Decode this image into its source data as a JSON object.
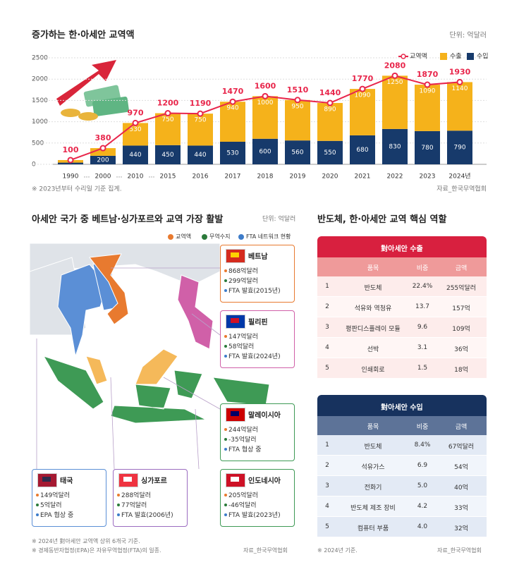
{
  "chart_data": {
    "type": "bar-line",
    "title": "증가하는 한·아세안 교역액",
    "unit": "단위: 억달러",
    "categories": [
      "1990",
      "2000",
      "2010",
      "2015",
      "2016",
      "2017",
      "2018",
      "2019",
      "2020",
      "2021",
      "2022",
      "2023",
      "2024년"
    ],
    "break_label": "…",
    "breaks_after": [
      0,
      1,
      2
    ],
    "series": [
      {
        "name": "교역액",
        "kind": "line",
        "color": "#e8264b",
        "values": [
          100,
          380,
          970,
          1200,
          1190,
          1470,
          1600,
          1510,
          1440,
          1770,
          2080,
          1870,
          1930
        ]
      },
      {
        "name": "수출",
        "kind": "stack",
        "color": "#f5b21b",
        "values": [
          60,
          180,
          530,
          750,
          750,
          940,
          1000,
          950,
          890,
          1090,
          1250,
          1090,
          1140
        ],
        "value_labels": [
          null,
          null,
          "530",
          "750",
          "750",
          "940",
          "1000",
          "950",
          "890",
          "1090",
          "1250",
          "1090",
          "1140"
        ]
      },
      {
        "name": "수입",
        "kind": "stack",
        "color": "#173a6b",
        "values": [
          40,
          200,
          440,
          450,
          440,
          530,
          600,
          560,
          550,
          680,
          830,
          780,
          790
        ],
        "value_labels": [
          null,
          "200",
          "440",
          "450",
          "440",
          "530",
          "600",
          "560",
          "550",
          "680",
          "830",
          "780",
          "790"
        ]
      }
    ],
    "ylim": [
      0,
      2500
    ],
    "yticks": [
      0,
      500,
      1000,
      1500,
      2000,
      2500
    ],
    "grid": true,
    "note": "※ 2023년부터 수리일 기준 집계.",
    "source": "자료_한국무역협회"
  },
  "map": {
    "title": "아세안 국가 중 베트남·싱가포르와 교역 가장 활발",
    "unit": "단위: 억달러",
    "legend": [
      {
        "label": "교역액",
        "color": "#e87a2f"
      },
      {
        "label": "무역수지",
        "color": "#2b7a3a"
      },
      {
        "label": "FTA 네트워크 현황",
        "color": "#3d7cc9"
      }
    ],
    "countries": [
      {
        "name": "베트남",
        "lines": [
          "868억달러",
          "299억달러",
          "FTA 발효(2015년)"
        ]
      },
      {
        "name": "필리핀",
        "lines": [
          "147억달러",
          "58억달러",
          "FTA 발효(2024년)"
        ]
      },
      {
        "name": "말레이시아",
        "lines": [
          "244억달러",
          "-35억달러",
          "FTA 협상 중"
        ]
      },
      {
        "name": "태국",
        "lines": [
          "149억달러",
          "5억달러",
          "EPA 협상 중"
        ]
      },
      {
        "name": "싱가포르",
        "lines": [
          "288억달러",
          "77억달러",
          "FTA 발효(2006년)"
        ]
      },
      {
        "name": "인도네시아",
        "lines": [
          "205억달러",
          "-46억달러",
          "FTA 발효(2023년)"
        ]
      }
    ],
    "notes": [
      "※ 2024년 對아세안 교역액 상위 6개국 기준.",
      "※ 경제동반자협정(EPA)은 자유무역협정(FTA)의 일종."
    ],
    "source": "자료_한국무역협회"
  },
  "tables": {
    "title": "반도체, 한·아세안 교역 핵심 역할",
    "items": [
      {
        "title": "對아세안 수출",
        "headers": [
          "품목",
          "비중",
          "금액"
        ],
        "rows": [
          [
            1,
            "반도체",
            "22.4%",
            "255억달러"
          ],
          [
            2,
            "석유와 역청유",
            "13.7",
            "157억"
          ],
          [
            3,
            "평판디스플레이 모듈",
            "9.6",
            "109억"
          ],
          [
            4,
            "선박",
            "3.1",
            "36억"
          ],
          [
            5,
            "인쇄회로",
            "1.5",
            "18억"
          ]
        ]
      },
      {
        "title": "對아세안 수입",
        "headers": [
          "품목",
          "비중",
          "금액"
        ],
        "rows": [
          [
            1,
            "반도체",
            "8.4%",
            "67억달러"
          ],
          [
            2,
            "석유가스",
            "6.9",
            "54억"
          ],
          [
            3,
            "전화기",
            "5.0",
            "40억"
          ],
          [
            4,
            "반도체 제조 장비",
            "4.2",
            "33억"
          ],
          [
            5,
            "컴퓨터 부품",
            "4.0",
            "32억"
          ]
        ]
      }
    ],
    "note": "※ 2024년 기준.",
    "source": "자료_한국무역협회"
  }
}
